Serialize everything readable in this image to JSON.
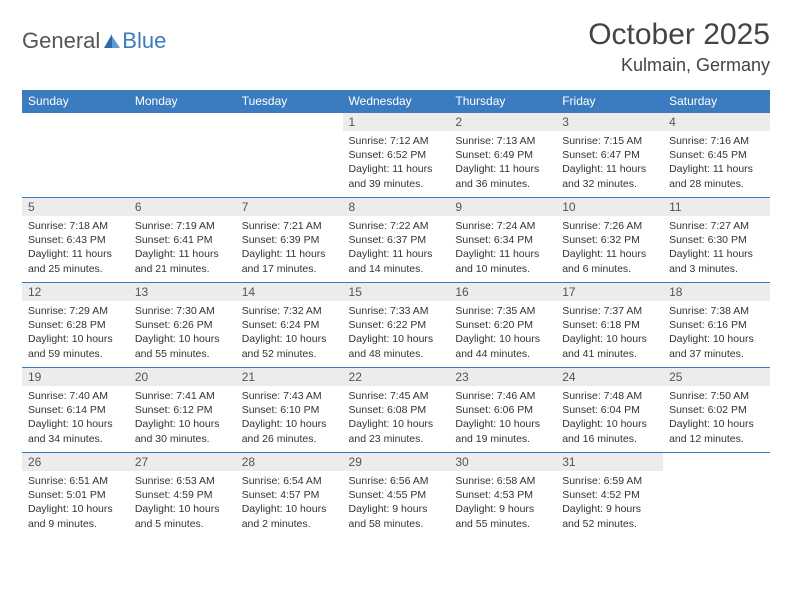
{
  "logo": {
    "text1": "General",
    "text2": "Blue"
  },
  "title": "October 2025",
  "location": "Kulmain, Germany",
  "colors": {
    "header_bg": "#3b7bbf",
    "header_text": "#ffffff",
    "daynum_bg": "#ececec",
    "border": "#3b7bbf",
    "body_text": "#333333"
  },
  "dayNames": [
    "Sunday",
    "Monday",
    "Tuesday",
    "Wednesday",
    "Thursday",
    "Friday",
    "Saturday"
  ],
  "weeks": [
    [
      null,
      null,
      null,
      {
        "n": "1",
        "sr": "7:12 AM",
        "ss": "6:52 PM",
        "dl": "11 hours and 39 minutes."
      },
      {
        "n": "2",
        "sr": "7:13 AM",
        "ss": "6:49 PM",
        "dl": "11 hours and 36 minutes."
      },
      {
        "n": "3",
        "sr": "7:15 AM",
        "ss": "6:47 PM",
        "dl": "11 hours and 32 minutes."
      },
      {
        "n": "4",
        "sr": "7:16 AM",
        "ss": "6:45 PM",
        "dl": "11 hours and 28 minutes."
      }
    ],
    [
      {
        "n": "5",
        "sr": "7:18 AM",
        "ss": "6:43 PM",
        "dl": "11 hours and 25 minutes."
      },
      {
        "n": "6",
        "sr": "7:19 AM",
        "ss": "6:41 PM",
        "dl": "11 hours and 21 minutes."
      },
      {
        "n": "7",
        "sr": "7:21 AM",
        "ss": "6:39 PM",
        "dl": "11 hours and 17 minutes."
      },
      {
        "n": "8",
        "sr": "7:22 AM",
        "ss": "6:37 PM",
        "dl": "11 hours and 14 minutes."
      },
      {
        "n": "9",
        "sr": "7:24 AM",
        "ss": "6:34 PM",
        "dl": "11 hours and 10 minutes."
      },
      {
        "n": "10",
        "sr": "7:26 AM",
        "ss": "6:32 PM",
        "dl": "11 hours and 6 minutes."
      },
      {
        "n": "11",
        "sr": "7:27 AM",
        "ss": "6:30 PM",
        "dl": "11 hours and 3 minutes."
      }
    ],
    [
      {
        "n": "12",
        "sr": "7:29 AM",
        "ss": "6:28 PM",
        "dl": "10 hours and 59 minutes."
      },
      {
        "n": "13",
        "sr": "7:30 AM",
        "ss": "6:26 PM",
        "dl": "10 hours and 55 minutes."
      },
      {
        "n": "14",
        "sr": "7:32 AM",
        "ss": "6:24 PM",
        "dl": "10 hours and 52 minutes."
      },
      {
        "n": "15",
        "sr": "7:33 AM",
        "ss": "6:22 PM",
        "dl": "10 hours and 48 minutes."
      },
      {
        "n": "16",
        "sr": "7:35 AM",
        "ss": "6:20 PM",
        "dl": "10 hours and 44 minutes."
      },
      {
        "n": "17",
        "sr": "7:37 AM",
        "ss": "6:18 PM",
        "dl": "10 hours and 41 minutes."
      },
      {
        "n": "18",
        "sr": "7:38 AM",
        "ss": "6:16 PM",
        "dl": "10 hours and 37 minutes."
      }
    ],
    [
      {
        "n": "19",
        "sr": "7:40 AM",
        "ss": "6:14 PM",
        "dl": "10 hours and 34 minutes."
      },
      {
        "n": "20",
        "sr": "7:41 AM",
        "ss": "6:12 PM",
        "dl": "10 hours and 30 minutes."
      },
      {
        "n": "21",
        "sr": "7:43 AM",
        "ss": "6:10 PM",
        "dl": "10 hours and 26 minutes."
      },
      {
        "n": "22",
        "sr": "7:45 AM",
        "ss": "6:08 PM",
        "dl": "10 hours and 23 minutes."
      },
      {
        "n": "23",
        "sr": "7:46 AM",
        "ss": "6:06 PM",
        "dl": "10 hours and 19 minutes."
      },
      {
        "n": "24",
        "sr": "7:48 AM",
        "ss": "6:04 PM",
        "dl": "10 hours and 16 minutes."
      },
      {
        "n": "25",
        "sr": "7:50 AM",
        "ss": "6:02 PM",
        "dl": "10 hours and 12 minutes."
      }
    ],
    [
      {
        "n": "26",
        "sr": "6:51 AM",
        "ss": "5:01 PM",
        "dl": "10 hours and 9 minutes."
      },
      {
        "n": "27",
        "sr": "6:53 AM",
        "ss": "4:59 PM",
        "dl": "10 hours and 5 minutes."
      },
      {
        "n": "28",
        "sr": "6:54 AM",
        "ss": "4:57 PM",
        "dl": "10 hours and 2 minutes."
      },
      {
        "n": "29",
        "sr": "6:56 AM",
        "ss": "4:55 PM",
        "dl": "9 hours and 58 minutes."
      },
      {
        "n": "30",
        "sr": "6:58 AM",
        "ss": "4:53 PM",
        "dl": "9 hours and 55 minutes."
      },
      {
        "n": "31",
        "sr": "6:59 AM",
        "ss": "4:52 PM",
        "dl": "9 hours and 52 minutes."
      },
      null
    ]
  ],
  "labels": {
    "sunrise": "Sunrise: ",
    "sunset": "Sunset: ",
    "daylight": "Daylight: "
  }
}
